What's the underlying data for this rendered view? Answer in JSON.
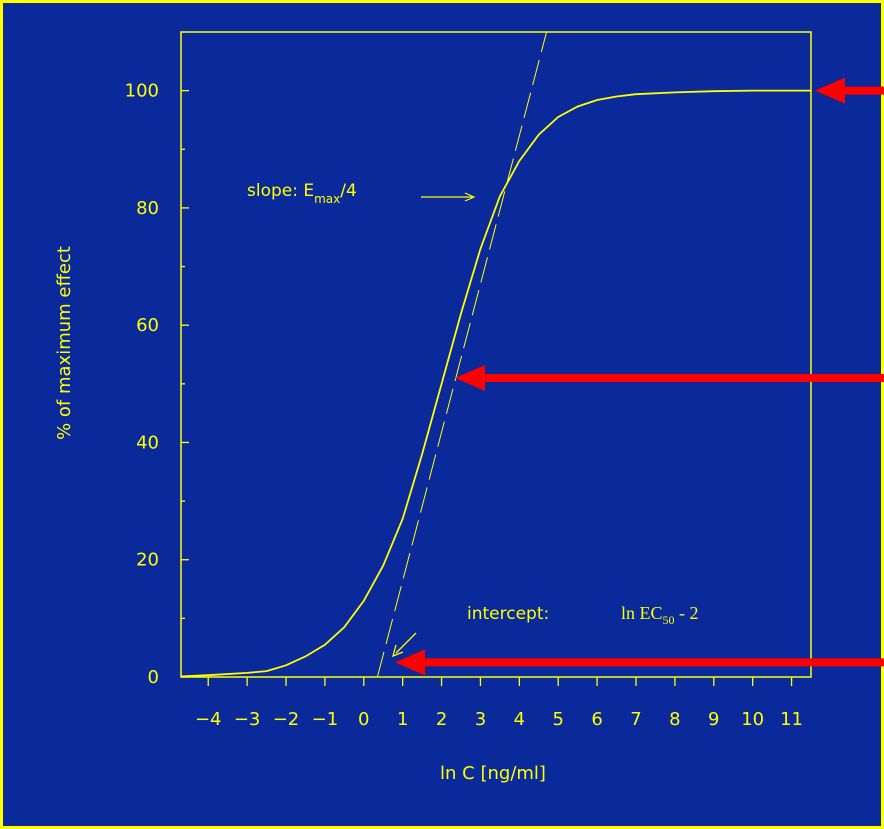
{
  "colors": {
    "background": "#0a2a9c",
    "border": "#ffff00",
    "plot": "#ffff00",
    "arrow": "#ff0000"
  },
  "chart_data": {
    "type": "line",
    "xlabel": "ln C [ng/ml]",
    "ylabel": "% of maximum effect",
    "xlim": [
      -4.7,
      11.5
    ],
    "ylim": [
      0,
      110
    ],
    "xticks": [
      -4,
      -3,
      -2,
      -1,
      0,
      1,
      2,
      3,
      4,
      5,
      6,
      7,
      8,
      9,
      10,
      11
    ],
    "yticks": [
      0,
      20,
      40,
      60,
      80,
      100
    ],
    "grid": false,
    "series": [
      {
        "x": [
          -4.7,
          -4,
          -3,
          -2.5,
          -2,
          -1.5,
          -1,
          -0.5,
          0,
          0.5,
          1,
          1.5,
          2,
          2.5,
          3,
          3.5,
          4,
          4.5,
          5,
          5.5,
          6,
          6.5,
          7,
          8,
          9,
          10,
          11,
          11.5
        ],
        "y": [
          0.1,
          0.3,
          0.7,
          1.0,
          2.0,
          3.5,
          5.5,
          8.5,
          13,
          19,
          27,
          38,
          50,
          62,
          73,
          82,
          88,
          92.5,
          95.5,
          97.3,
          98.4,
          99.0,
          99.4,
          99.7,
          99.9,
          100,
          100,
          100
        ]
      }
    ],
    "tangent_line": {
      "x": [
        0.35,
        4.7
      ],
      "y": [
        0,
        110
      ]
    },
    "annotations": {
      "slope_prefix": "slope:  E",
      "slope_sub": "max",
      "slope_suffix": "/4",
      "intercept_prefix": "intercept:",
      "intercept_formula": "ln EC",
      "intercept_sub": "50",
      "intercept_suffix": " - 2"
    },
    "arrows": [
      {
        "target": "maximum",
        "y": 100
      },
      {
        "target": "midpoint",
        "y": 51
      },
      {
        "target": "intercept",
        "y": 2.5
      }
    ]
  }
}
